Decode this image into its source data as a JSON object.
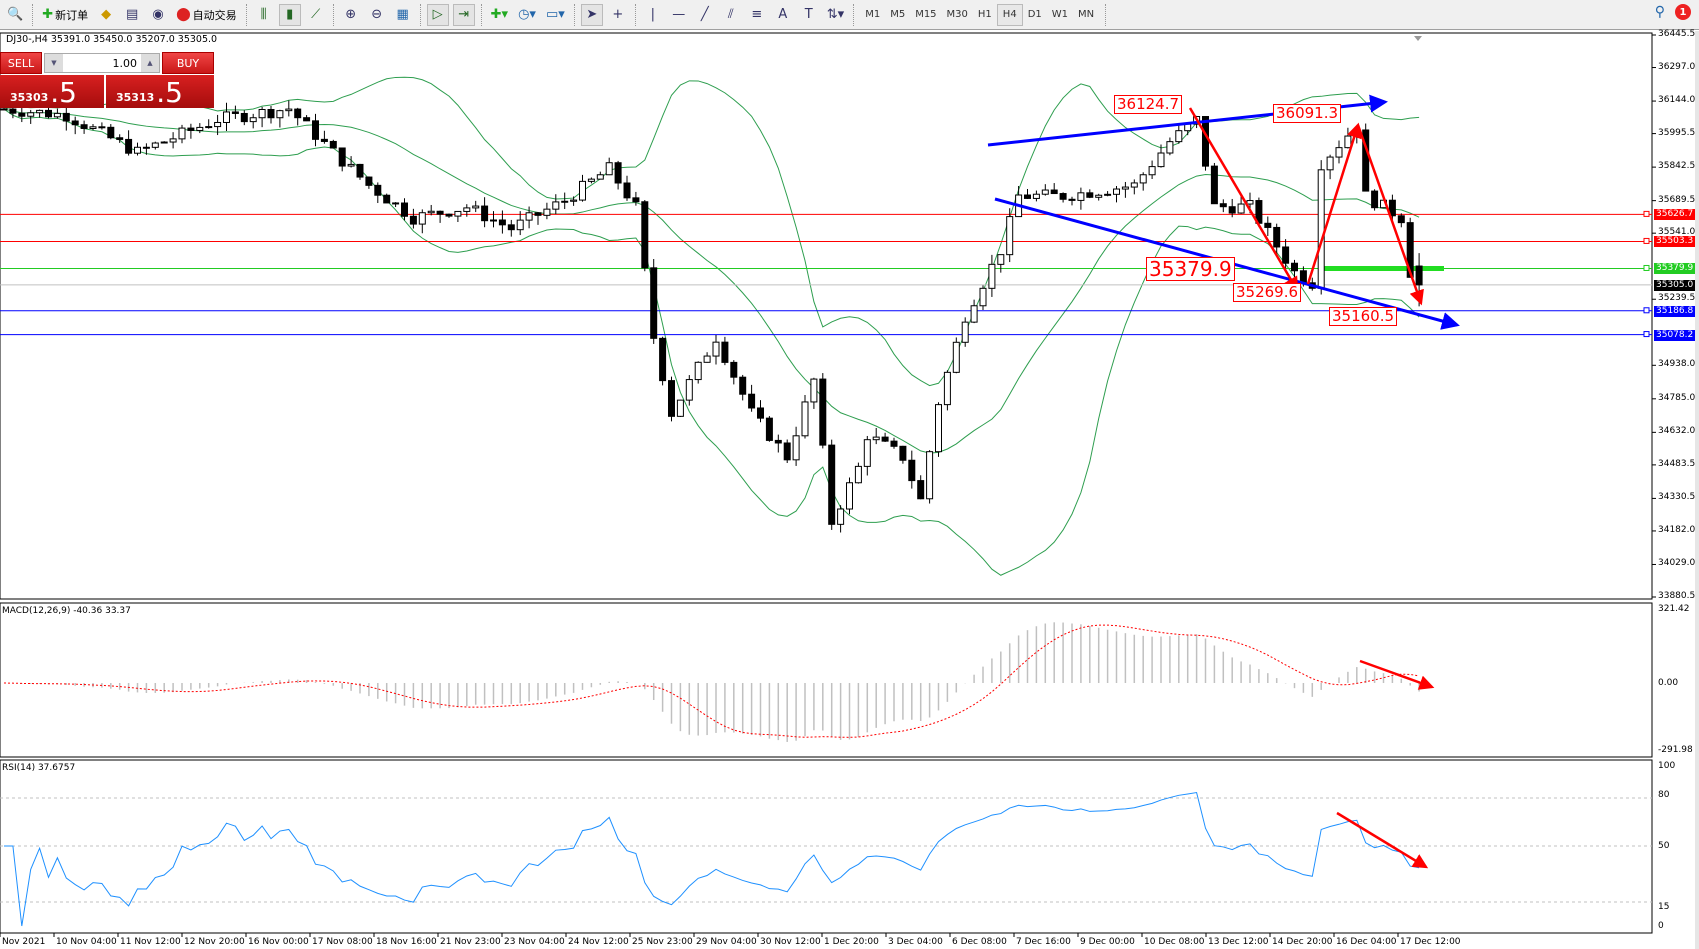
{
  "toolbar": {
    "new_order": "新订单",
    "auto_trading": "自动交易",
    "timeframes": [
      "M1",
      "M5",
      "M15",
      "M30",
      "H1",
      "H4",
      "D1",
      "W1",
      "MN"
    ],
    "active_timeframe": "H4",
    "notification_count": "1"
  },
  "chart": {
    "header": "DJ30-,H4  35391.0 35450.0 35207.0 35305.0",
    "one_click": {
      "sell_label": "SELL",
      "buy_label": "BUY",
      "lot": "1.00",
      "sell_price_main": "35303",
      "sell_price_frac": ".5",
      "buy_price_main": "35313",
      "buy_price_frac": ".5"
    },
    "price_axis": [
      "36445.5",
      "36297.0",
      "36144.0",
      "35995.5",
      "35842.5",
      "35689.5",
      "35541.0",
      "35239.5",
      "34938.0",
      "34785.0",
      "34632.0",
      "34483.5",
      "34330.5",
      "34182.0",
      "34029.0",
      "33880.5"
    ],
    "price_range": [
      33880.5,
      36445.5
    ],
    "levels": [
      {
        "value": "35626.7",
        "color": "#ff0000",
        "kind": "hline"
      },
      {
        "value": "35503.3",
        "color": "#ff0000",
        "kind": "hline"
      },
      {
        "value": "35379.9",
        "color": "#22cc22",
        "kind": "hline"
      },
      {
        "value": "35305.0",
        "color": "#000000",
        "kind": "bid"
      },
      {
        "value": "35186.8",
        "color": "#0000ff",
        "kind": "hline"
      },
      {
        "value": "35078.2",
        "color": "#0000ff",
        "kind": "hline"
      }
    ],
    "annotations": [
      "36124.7",
      "36091.3",
      "35379.9",
      "35269.6",
      "35160.5"
    ],
    "price_path": [
      [
        0,
        36108
      ],
      [
        7,
        36080
      ],
      [
        15,
        35910
      ],
      [
        24,
        36060
      ],
      [
        32,
        36110
      ],
      [
        37,
        35910
      ],
      [
        41,
        35760
      ],
      [
        46,
        35612
      ],
      [
        52,
        35660
      ],
      [
        57,
        35562
      ],
      [
        63,
        35690
      ],
      [
        68,
        35835
      ],
      [
        71,
        35660
      ],
      [
        73,
        35066
      ],
      [
        75,
        34720
      ],
      [
        80,
        35066
      ],
      [
        84,
        34720
      ],
      [
        88,
        34520
      ],
      [
        91,
        34870
      ],
      [
        93,
        34222
      ],
      [
        96,
        34470
      ],
      [
        97,
        34620
      ],
      [
        101,
        34520
      ],
      [
        103,
        34322
      ],
      [
        105,
        34770
      ],
      [
        108,
        35165
      ],
      [
        112,
        35463
      ],
      [
        114,
        35711
      ],
      [
        119,
        35711
      ],
      [
        127,
        35760
      ],
      [
        131,
        35959
      ],
      [
        134,
        36058
      ],
      [
        136,
        35662
      ],
      [
        140,
        35662
      ],
      [
        145,
        35364
      ],
      [
        147,
        35314
      ],
      [
        148,
        35860
      ],
      [
        152,
        36034
      ],
      [
        153,
        35711
      ],
      [
        157,
        35612
      ],
      [
        158,
        35364
      ],
      [
        159,
        35305
      ]
    ],
    "last_bar": {
      "open": 35391.0,
      "high": 35450.0,
      "low": 35207.0,
      "close": 35305.0
    },
    "indicators": {
      "bollinger": {
        "period": 20,
        "deviation": 2,
        "color": "#2e9e4f"
      }
    }
  },
  "macd": {
    "label": "MACD(12,26,9) -40.36 33.37",
    "axis": [
      "321.42",
      "0.00",
      "-291.98"
    ],
    "signal_color": "#ff0000",
    "hist_color": "#c0c0c0"
  },
  "rsi": {
    "label": "RSI(14) 37.6757",
    "axis": [
      "100",
      "80",
      "50",
      "15",
      "0"
    ],
    "color": "#1e90ff"
  },
  "time_axis": [
    "Nov 2021",
    "10 Nov 04:00",
    "11 Nov 12:00",
    "12 Nov 20:00",
    "16 Nov 00:00",
    "17 Nov 08:00",
    "18 Nov 16:00",
    "21 Nov 23:00",
    "23 Nov 04:00",
    "24 Nov 12:00",
    "25 Nov 23:00",
    "29 Nov 04:00",
    "30 Nov 12:00",
    "1 Dec 20:00",
    "3 Dec 04:00",
    "6 Dec 08:00",
    "7 Dec 16:00",
    "9 Dec 00:00",
    "10 Dec 08:00",
    "13 Dec 12:00",
    "14 Dec 20:00",
    "16 Dec 04:00",
    "17 Dec 12:00"
  ],
  "colors": {
    "bull": "#ffffff",
    "bear": "#000000",
    "trendline": "#0000ff",
    "arrow": "#ff0000"
  }
}
